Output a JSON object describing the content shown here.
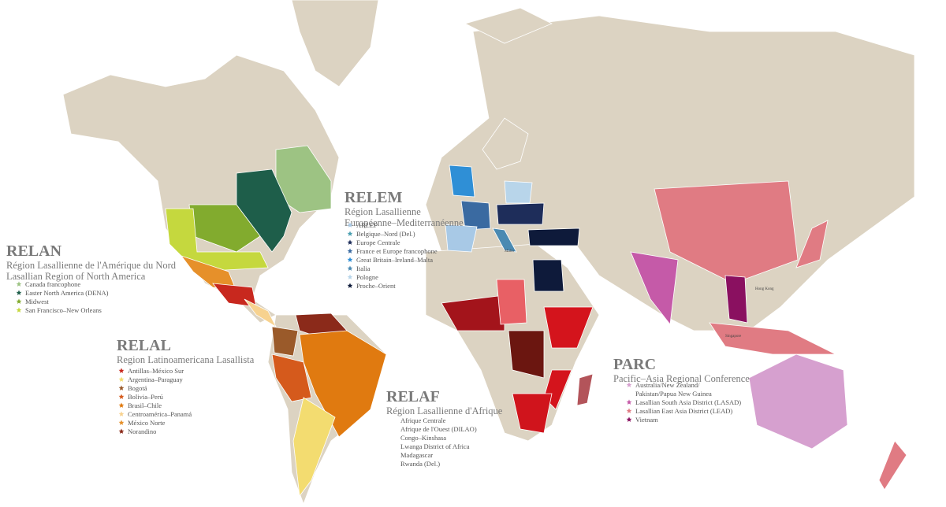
{
  "map_title": null,
  "regions": [
    {
      "code": "RELAN",
      "title_lines": [
        "Région Lasallienne de l'Amérique du Nord",
        "Lasallian Region of North America"
      ],
      "items": [
        {
          "lines": [
            "Canada francophone"
          ],
          "color": "#9dc383"
        },
        {
          "lines": [
            "Easter North America (DENA)"
          ],
          "color": "#1e5e4a"
        },
        {
          "lines": [
            "Midwest"
          ],
          "color": "#82ab2e"
        },
        {
          "lines": [
            "San Francisco–New Orleans"
          ],
          "color": "#c5d83e"
        }
      ]
    },
    {
      "code": "RELEM",
      "title_lines": [
        "Région Lasallienne",
        "Européenne–Mediterranéenne"
      ],
      "items": [
        {
          "lines": [
            "ARLEP"
          ],
          "color": "#a8c9e6"
        },
        {
          "lines": [
            "Belgique–Nord (Del.)"
          ],
          "color": "#4a9fb0"
        },
        {
          "lines": [
            "Europe Centrale"
          ],
          "color": "#1e2d5a"
        },
        {
          "lines": [
            "France et Europe francophone"
          ],
          "color": "#3a6aa1"
        },
        {
          "lines": [
            "Great Britain–Ireland–Malta"
          ],
          "color": "#2f8fd6"
        },
        {
          "lines": [
            "Italia"
          ],
          "color": "#4a8ab2"
        },
        {
          "lines": [
            "Pologne"
          ],
          "color": "#b8d5ea"
        },
        {
          "lines": [
            "Proche–Orient"
          ],
          "color": "#0e1a3a"
        }
      ]
    },
    {
      "code": "RELAL",
      "title_lines": [
        "Region Latinoamericana Lasallista"
      ],
      "items": [
        {
          "lines": [
            "Antillas–México Sur"
          ],
          "color": "#c8281e"
        },
        {
          "lines": [
            "Argentina–Paraguay"
          ],
          "color": "#f3dc70"
        },
        {
          "lines": [
            "Bogotá"
          ],
          "color": "#9a5a2a"
        },
        {
          "lines": [
            "Bolivia–Perú"
          ],
          "color": "#d55a1c"
        },
        {
          "lines": [
            "Brasil–Chile"
          ],
          "color": "#e07a10"
        },
        {
          "lines": [
            "Centroamérica–Panamá"
          ],
          "color": "#f7d28f"
        },
        {
          "lines": [
            "México Norte"
          ],
          "color": "#e6902a"
        },
        {
          "lines": [
            "Norandino"
          ],
          "color": "#8b2a1a"
        }
      ]
    },
    {
      "code": "RELAF",
      "title_lines": [
        "Région Lasallienne d'Afrique"
      ],
      "items": [
        {
          "lines": [
            "Afrique Centrale"
          ]
        },
        {
          "lines": [
            "Afrique de l'Ouest (DILAO)"
          ]
        },
        {
          "lines": [
            "Congo–Kinshasa"
          ]
        },
        {
          "lines": [
            "Lwanga District of Africa"
          ]
        },
        {
          "lines": [
            "Madagascar"
          ]
        },
        {
          "lines": [
            "Rwanda (Del.)"
          ]
        }
      ]
    },
    {
      "code": "PARC",
      "title_lines": [
        "Pacific–Asia Regional Conference"
      ],
      "items": [
        {
          "lines": [
            "Australia/New Zealand/",
            "Pakistan/Papua New Guinea"
          ],
          "color": "#d6a0cf"
        },
        {
          "lines": [
            "Lasallian South Asia District (LASAD)"
          ],
          "color": "#c55aa8"
        },
        {
          "lines": [
            "Lasallian East Asia District (LEAD)"
          ],
          "color": "#e07b83"
        },
        {
          "lines": [
            "Vietnam"
          ],
          "color": "#8a1060"
        }
      ]
    }
  ],
  "map_labels": [
    "Hong Kong",
    "Singapore",
    "Malta"
  ]
}
